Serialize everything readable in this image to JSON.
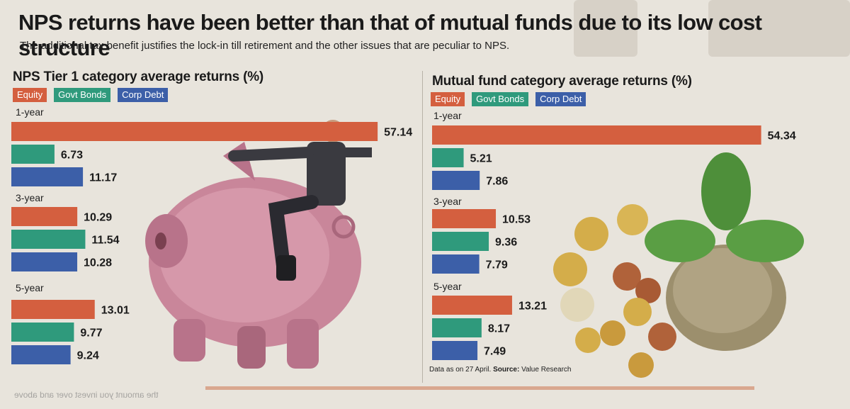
{
  "headline": "NPS returns have been better than that of mutual funds due to its low cost structure",
  "subhead": "The additional tax benefit justifies the lock-in till retirement and the other issues that are peculiar to NPS.",
  "colors": {
    "Equity": "#d45f3f",
    "Govt Bonds": "#2f9a7c",
    "Corp Debt": "#3c5fa8"
  },
  "chart_data": [
    {
      "type": "bar",
      "orientation": "horizontal",
      "title": "NPS Tier 1 category average returns (%)",
      "legend": [
        "Equity",
        "Govt Bonds",
        "Corp Debt"
      ],
      "categories": [
        "1-year",
        "3-year",
        "5-year"
      ],
      "series": [
        {
          "name": "Equity",
          "values": [
            57.14,
            10.29,
            13.01
          ]
        },
        {
          "name": "Govt Bonds",
          "values": [
            6.73,
            11.54,
            9.77
          ]
        },
        {
          "name": "Corp Debt",
          "values": [
            11.17,
            10.28,
            9.24
          ]
        }
      ],
      "xlim": [
        0,
        60
      ]
    },
    {
      "type": "bar",
      "orientation": "horizontal",
      "title": "Mutual fund category average returns (%)",
      "legend": [
        "Equity",
        "Govt Bonds",
        "Corp Debt"
      ],
      "categories": [
        "1-year",
        "3-year",
        "5-year"
      ],
      "series": [
        {
          "name": "Equity",
          "values": [
            54.34,
            10.53,
            13.21
          ]
        },
        {
          "name": "Govt Bonds",
          "values": [
            5.21,
            9.36,
            8.17
          ]
        },
        {
          "name": "Corp Debt",
          "values": [
            7.86,
            7.79,
            7.49
          ]
        }
      ],
      "xlim": [
        0,
        60
      ]
    }
  ],
  "note": {
    "prefix": "Data as on 27 April.",
    "source_label": "Source:",
    "source": "Value Research"
  },
  "footer_text": "the amount you invest over and above"
}
